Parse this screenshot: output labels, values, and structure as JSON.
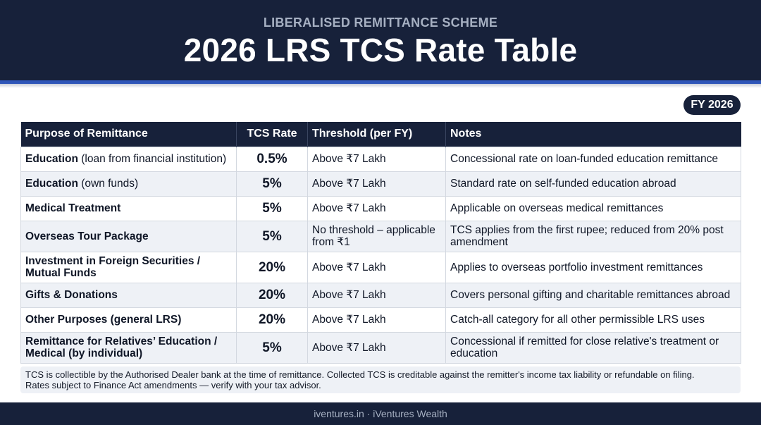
{
  "header": {
    "subtitle": "LIBERALISED REMITTANCE SCHEME",
    "title": "2026 LRS TCS Rate Table"
  },
  "badge": "FY 2026",
  "table": {
    "columns": [
      "Purpose of Remittance",
      "TCS Rate",
      "Threshold (per FY)",
      "Notes"
    ],
    "rows": [
      {
        "purpose_bold": "Education",
        "purpose_rest": " (loan from financial institution)",
        "rate": "0.5%",
        "threshold": "Above ₹7 Lakh",
        "notes": "Concessional rate on loan-funded education remittance"
      },
      {
        "purpose_bold": "Education",
        "purpose_rest": " (own funds)",
        "rate": "5%",
        "threshold": "Above ₹7 Lakh",
        "notes": "Standard rate on self-funded education abroad"
      },
      {
        "purpose_bold": "Medical Treatment",
        "purpose_rest": "",
        "rate": "5%",
        "threshold": "Above ₹7 Lakh",
        "notes": "Applicable on overseas medical remittances"
      },
      {
        "purpose_bold": "Overseas Tour Package",
        "purpose_rest": "",
        "rate": "5%",
        "threshold": "No threshold – applicable from ₹1",
        "notes": "TCS applies from the first rupee; reduced from 20% post amendment"
      },
      {
        "purpose_bold": "Investment in Foreign Securities / Mutual Funds",
        "purpose_rest": "",
        "rate": "20%",
        "threshold": "Above ₹7 Lakh",
        "notes": "Applies to overseas portfolio investment remittances"
      },
      {
        "purpose_bold": "Gifts & Donations",
        "purpose_rest": "",
        "rate": "20%",
        "threshold": "Above ₹7 Lakh",
        "notes": "Covers personal gifting and charitable remittances abroad"
      },
      {
        "purpose_bold": "Other Purposes (general LRS)",
        "purpose_rest": "",
        "rate": "20%",
        "threshold": "Above ₹7 Lakh",
        "notes": "Catch-all category for all other permissible LRS uses"
      },
      {
        "purpose_bold": "Remittance for Relatives’ Education / Medical (by individual)",
        "purpose_rest": "",
        "rate": "5%",
        "threshold": "Above ₹7 Lakh",
        "notes": "Concessional if remitted for close relative's treatment or education"
      }
    ]
  },
  "footnote": {
    "line1": "TCS is collectible by the Authorised Dealer bank at the time of remittance. Collected TCS is creditable against the remitter's income tax liability or refundable on filing.",
    "line2": "Rates subject to Finance Act amendments — verify with your tax advisor."
  },
  "footer": "iventures.in · iVentures Wealth",
  "colors": {
    "navy": "#17213a",
    "accent_blue": "#2f56b8",
    "rate_blue": "#1d4ea8",
    "alt_row": "#eef1f6"
  }
}
